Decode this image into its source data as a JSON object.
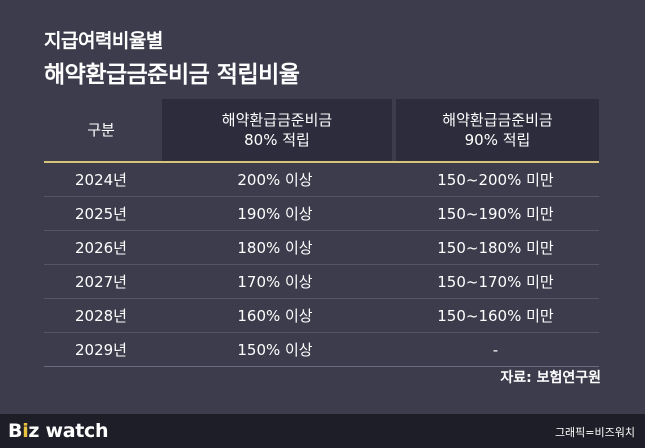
{
  "subtitle": "지급여력비율별",
  "title": "해약환급금준비금 적립비율",
  "table": {
    "headers": [
      "구분",
      [
        "해약환급금준비금",
        "80% 적립"
      ],
      [
        "해약환급금준비금",
        "90% 적립"
      ]
    ],
    "rows": [
      [
        "2024년",
        "200% 이상",
        "150~200% 미만"
      ],
      [
        "2025년",
        "190% 이상",
        "150~190% 미만"
      ],
      [
        "2026년",
        "180% 이상",
        "150~180% 미만"
      ],
      [
        "2027년",
        "170% 이상",
        "150~170% 미만"
      ],
      [
        "2028년",
        "160% 이상",
        "150~160% 미만"
      ],
      [
        "2029년",
        "150% 이상",
        "-"
      ]
    ]
  },
  "source": "자료: 보험연구원",
  "footer": {
    "logo_b": "B",
    "logo_accent": "i",
    "logo_z": "z",
    "logo_watch": " watch",
    "credit": "그래픽=비즈워치"
  },
  "colors": {
    "background": "#3c3c4c",
    "header_cell": "#2c2c3c",
    "gold_rule": "#d9c27a",
    "footer": "#1e1e28",
    "logo_accent": "#e8c340"
  }
}
